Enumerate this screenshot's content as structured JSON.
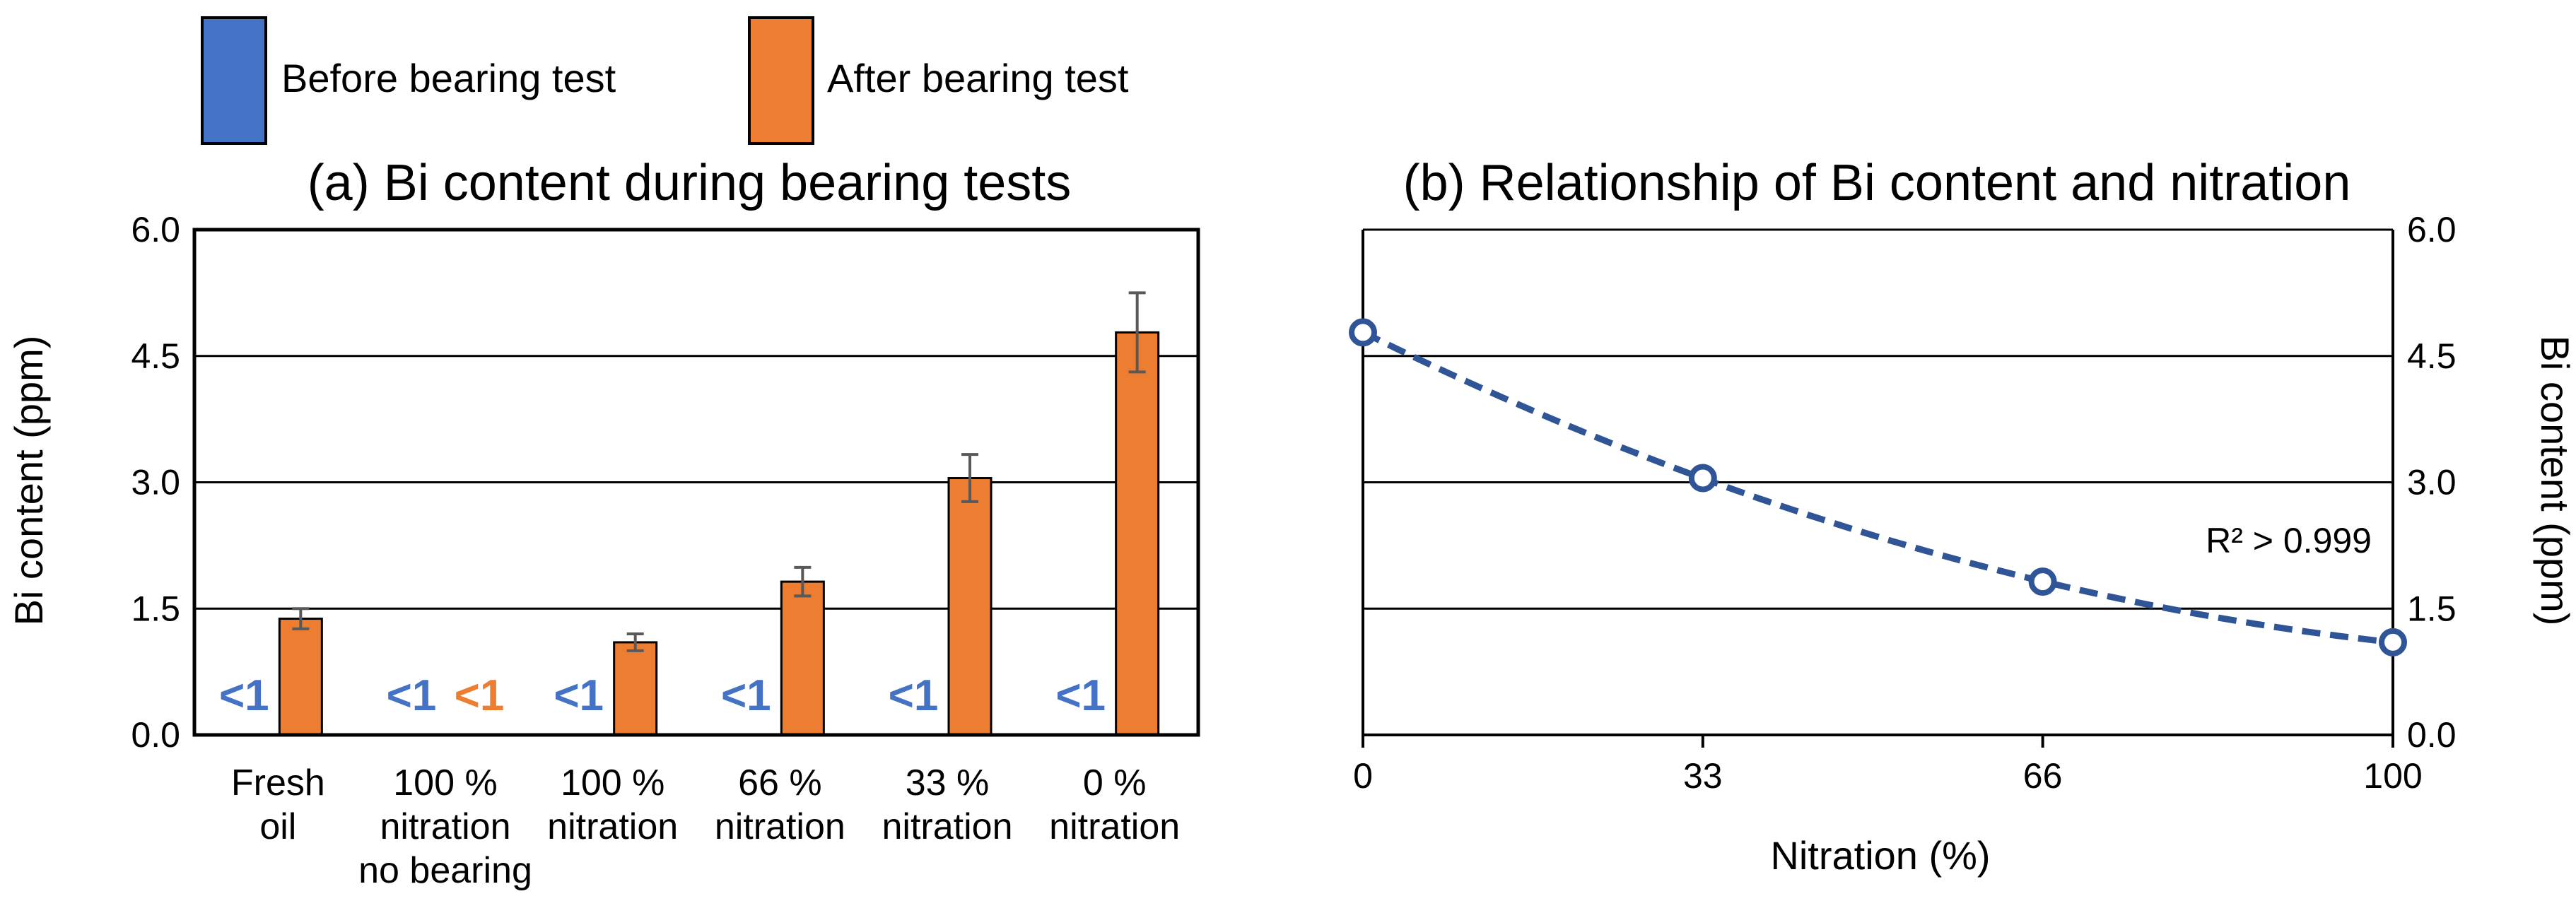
{
  "legend": {
    "items": [
      {
        "label": "Before bearing test",
        "color": "#4472C4"
      },
      {
        "label": "After bearing test",
        "color": "#ED7D31"
      }
    ]
  },
  "chart_data": [
    {
      "type": "bar",
      "title": "(a) Bi content during bearing tests",
      "xlabel": "",
      "ylabel": "Bi content (ppm)",
      "ylim": [
        0,
        6.0
      ],
      "yticks": [
        "0.0",
        "1.5",
        "3.0",
        "4.5",
        "6.0"
      ],
      "grid": true,
      "categories": [
        [
          "Fresh",
          "oil"
        ],
        [
          "100 %",
          "nitration",
          "no bearing"
        ],
        [
          "100 %",
          "nitration"
        ],
        [
          "66 %",
          "nitration"
        ],
        [
          "33 %",
          "nitration"
        ],
        [
          "0 %",
          "nitration"
        ]
      ],
      "series": [
        {
          "name": "Before bearing test",
          "color": "#4472C4",
          "values": [
            null,
            null,
            null,
            null,
            null,
            null
          ],
          "labels": [
            "<1",
            "<1",
            "<1",
            "<1",
            "<1",
            "<1"
          ]
        },
        {
          "name": "After bearing test",
          "color": "#ED7D31",
          "values": [
            1.38,
            null,
            1.1,
            1.82,
            3.05,
            4.78
          ],
          "errors": [
            0.12,
            null,
            0.1,
            0.17,
            0.28,
            0.47
          ],
          "labels": [
            null,
            "<1",
            null,
            null,
            null,
            null
          ]
        }
      ]
    },
    {
      "type": "scatter",
      "title": "(b) Relationship of Bi content and nitration",
      "xlabel": "Nitration (%)",
      "ylabel": "Bi content (ppm)",
      "xlim": [
        0,
        100
      ],
      "ylim": [
        0,
        6.0
      ],
      "xticks": [
        "0",
        "33",
        "66",
        "100"
      ],
      "yticks": [
        "0.0",
        "1.5",
        "3.0",
        "4.5",
        "6.0"
      ],
      "grid": true,
      "x": [
        0,
        33,
        66,
        100
      ],
      "y": [
        4.78,
        3.05,
        1.82,
        1.1
      ],
      "trendline": "polynomial",
      "annotation": "R² > 0.999",
      "color": "#2F5597"
    }
  ]
}
